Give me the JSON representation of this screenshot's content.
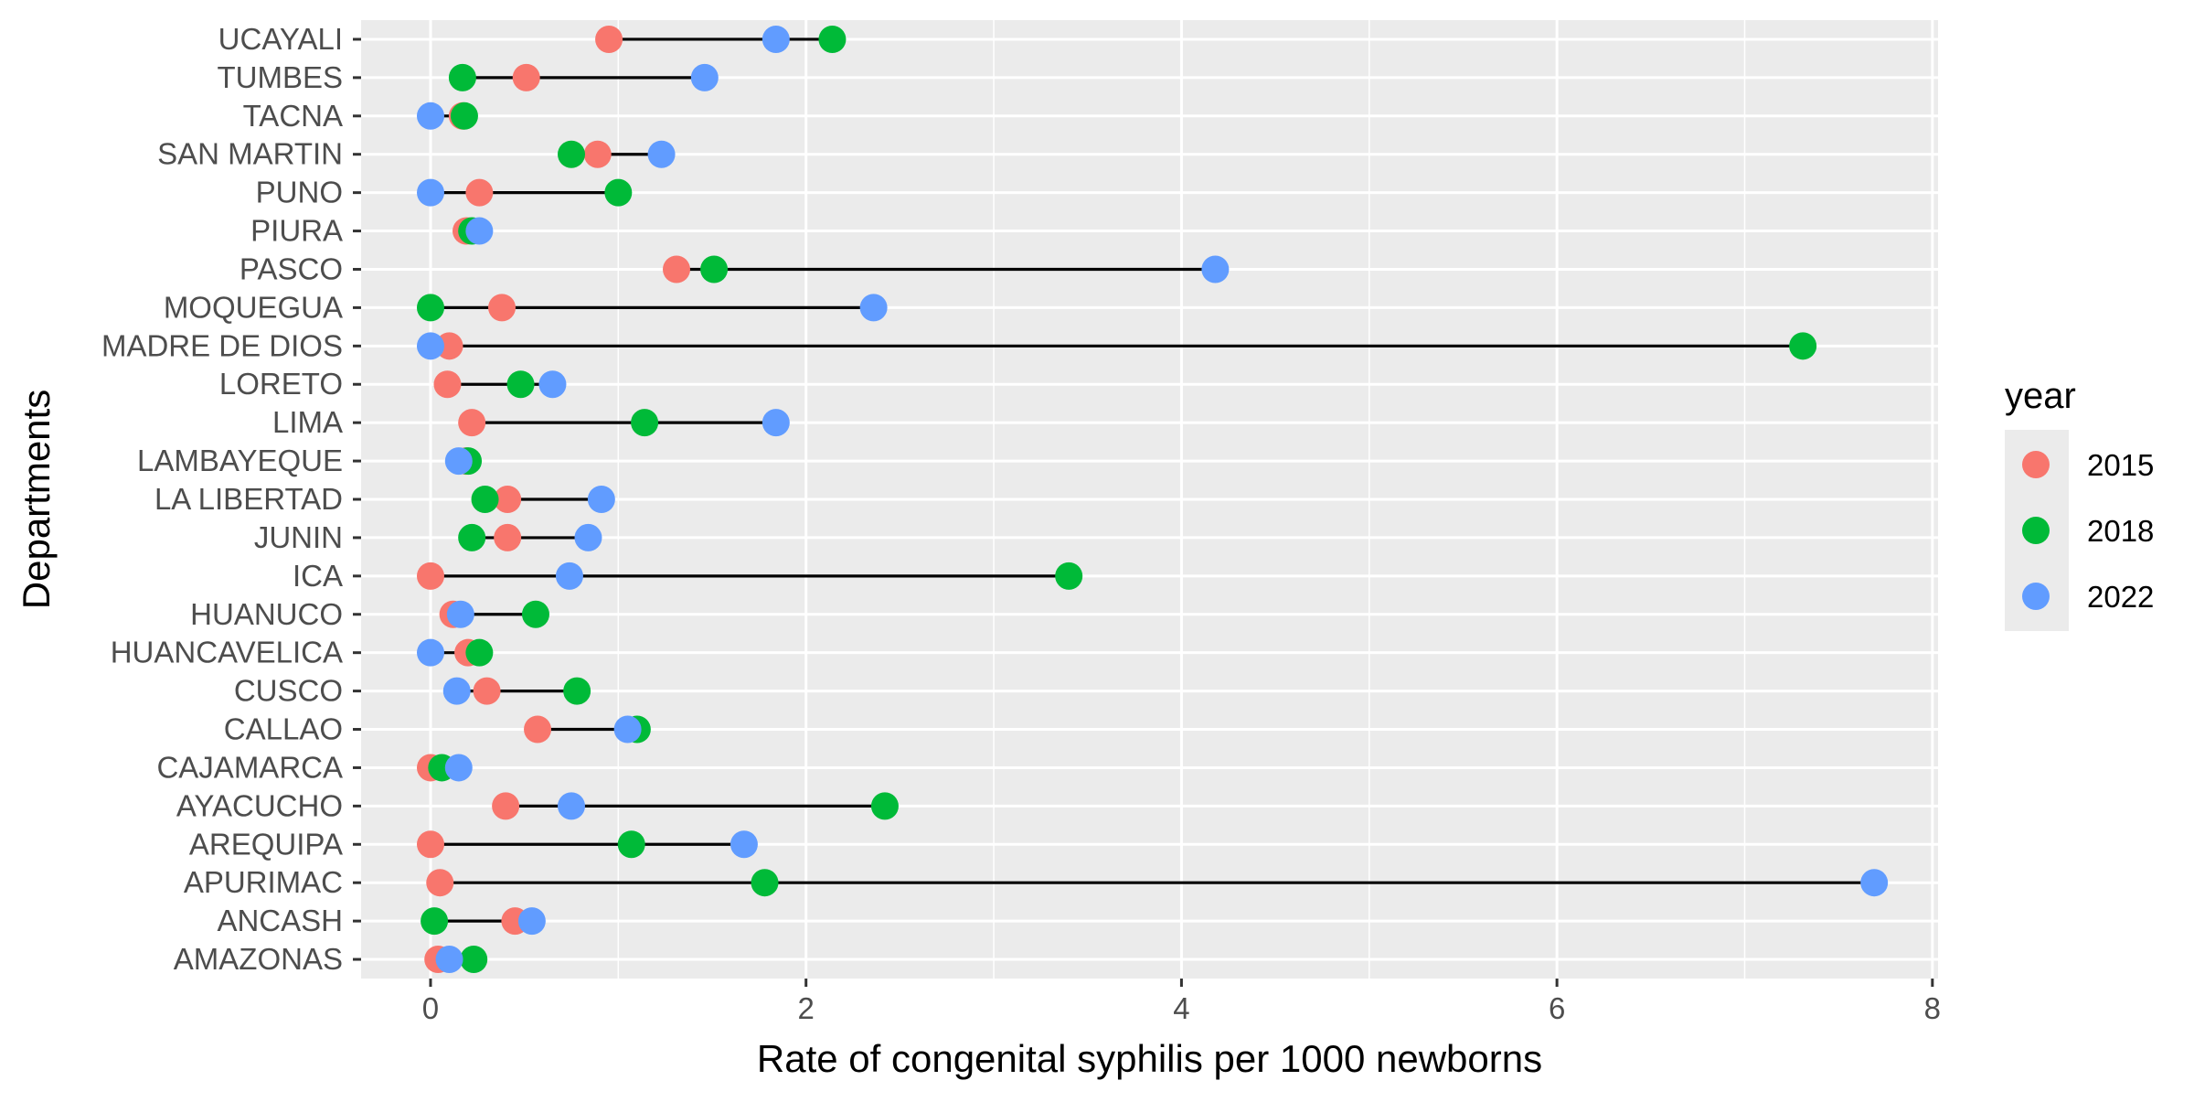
{
  "chart_data": {
    "type": "dumbbell",
    "title": "",
    "xlabel": "Rate of congenital syphilis per 1000 newborns",
    "ylabel": "Departments",
    "xlim": [
      -0.37,
      8.03
    ],
    "x_ticks": [
      0,
      2,
      4,
      6,
      8
    ],
    "x_tick_labels": [
      "0",
      "2",
      "4",
      "6",
      "8"
    ],
    "grid": true,
    "legend": {
      "title": "year",
      "position": "right",
      "entries": [
        {
          "label": "2015",
          "color": "#F8766D"
        },
        {
          "label": "2018",
          "color": "#00BA38"
        },
        {
          "label": "2022",
          "color": "#619CFF"
        }
      ]
    },
    "categories": [
      "UCAYALI",
      "TUMBES",
      "TACNA",
      "SAN MARTIN",
      "PUNO",
      "PIURA",
      "PASCO",
      "MOQUEGUA",
      "MADRE DE DIOS",
      "LORETO",
      "LIMA",
      "LAMBAYEQUE",
      "LA LIBERTAD",
      "JUNIN",
      "ICA",
      "HUANUCO",
      "HUANCAVELICA",
      "CUSCO",
      "CALLAO",
      "CAJAMARCA",
      "AYACUCHO",
      "AREQUIPA",
      "APURIMAC",
      "ANCASH",
      "AMAZONAS"
    ],
    "series": [
      {
        "name": "2015",
        "color": "#F8766D",
        "values": [
          0.95,
          0.51,
          0.17,
          0.89,
          0.26,
          0.19,
          1.31,
          0.38,
          0.1,
          0.09,
          0.22,
          0.19,
          0.41,
          0.41,
          0.0,
          0.12,
          0.2,
          0.3,
          0.57,
          0.0,
          0.4,
          0.0,
          0.05,
          0.45,
          0.04
        ]
      },
      {
        "name": "2018",
        "color": "#00BA38",
        "values": [
          2.14,
          0.17,
          0.18,
          0.75,
          1.0,
          0.22,
          1.51,
          0.0,
          7.31,
          0.48,
          1.14,
          0.2,
          0.29,
          0.22,
          3.4,
          0.56,
          0.26,
          0.78,
          1.1,
          0.06,
          2.42,
          1.07,
          1.78,
          0.02,
          0.23
        ]
      },
      {
        "name": "2022",
        "color": "#619CFF",
        "values": [
          1.84,
          1.46,
          0.0,
          1.23,
          0.0,
          0.26,
          4.18,
          2.36,
          0.0,
          0.65,
          1.84,
          0.15,
          0.91,
          0.84,
          0.74,
          0.16,
          0.0,
          0.14,
          1.05,
          0.15,
          0.75,
          1.67,
          7.69,
          0.54,
          0.1
        ]
      }
    ]
  }
}
